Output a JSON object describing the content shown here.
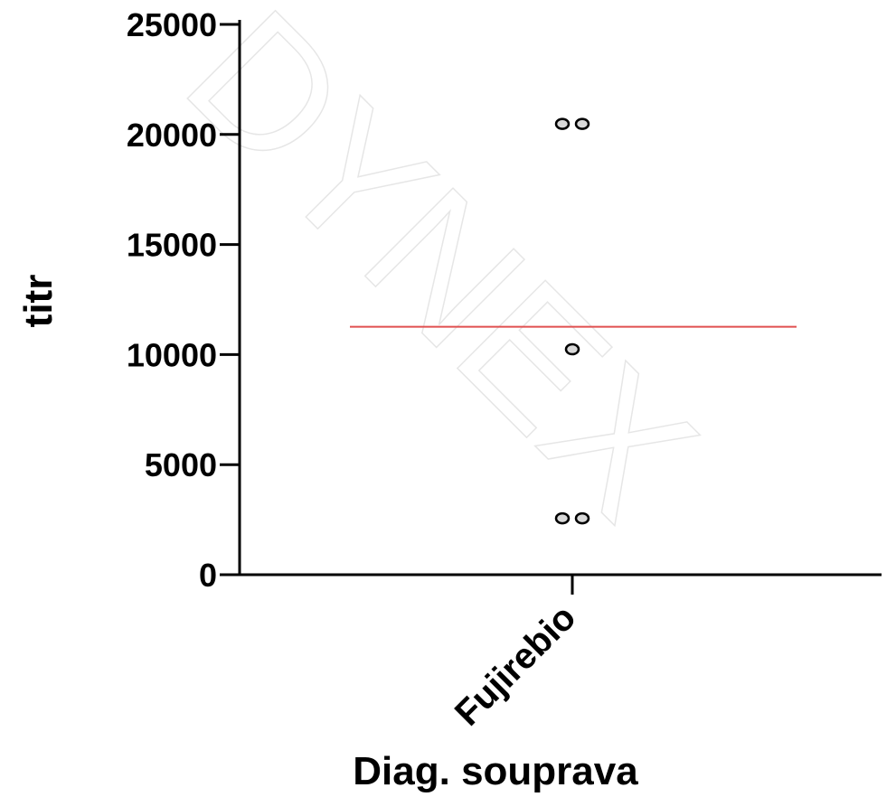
{
  "chart_data": {
    "type": "scatter",
    "ylabel": "titr",
    "xlabel": "Diag. souprava",
    "categories": [
      "Fujirebio"
    ],
    "ylim": [
      0,
      25000
    ],
    "yticks": [
      0,
      5000,
      10000,
      15000,
      20000,
      25000
    ],
    "series": [
      {
        "category": "Fujirebio",
        "values": [
          20480,
          20480,
          10240,
          2560,
          2560
        ],
        "mean": 11264
      }
    ],
    "colors": {
      "mean_line": "#e05050",
      "point_fill": "#d9d9d9",
      "point_stroke": "#000000",
      "axis": "#000000"
    },
    "watermark": "DYNEX",
    "grid": false,
    "legend": "none"
  }
}
